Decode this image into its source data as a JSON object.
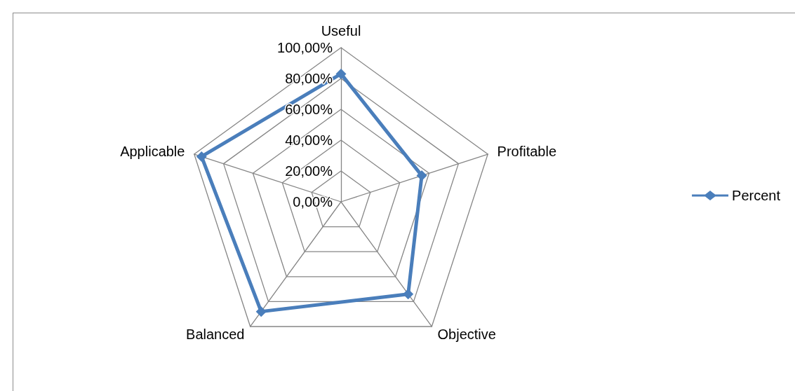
{
  "chart_data": {
    "type": "radar",
    "categories": [
      "Useful",
      "Profitable",
      "Objective",
      "Balanced",
      "Applicable"
    ],
    "series": [
      {
        "name": "Percent",
        "color": "#4a7ebb",
        "values": [
          83,
          55,
          74,
          88,
          95
        ]
      }
    ],
    "ylim": [
      0,
      100
    ],
    "yticks": [
      {
        "value": 0,
        "label": "0,00%"
      },
      {
        "value": 20,
        "label": "20,00%"
      },
      {
        "value": 40,
        "label": "40,00%"
      },
      {
        "value": 60,
        "label": "60,00%"
      },
      {
        "value": 80,
        "label": "80,00%"
      },
      {
        "value": 100,
        "label": "100,00%"
      }
    ],
    "grid": true,
    "legend": "right",
    "marker": "diamond",
    "line_style": "solid"
  }
}
